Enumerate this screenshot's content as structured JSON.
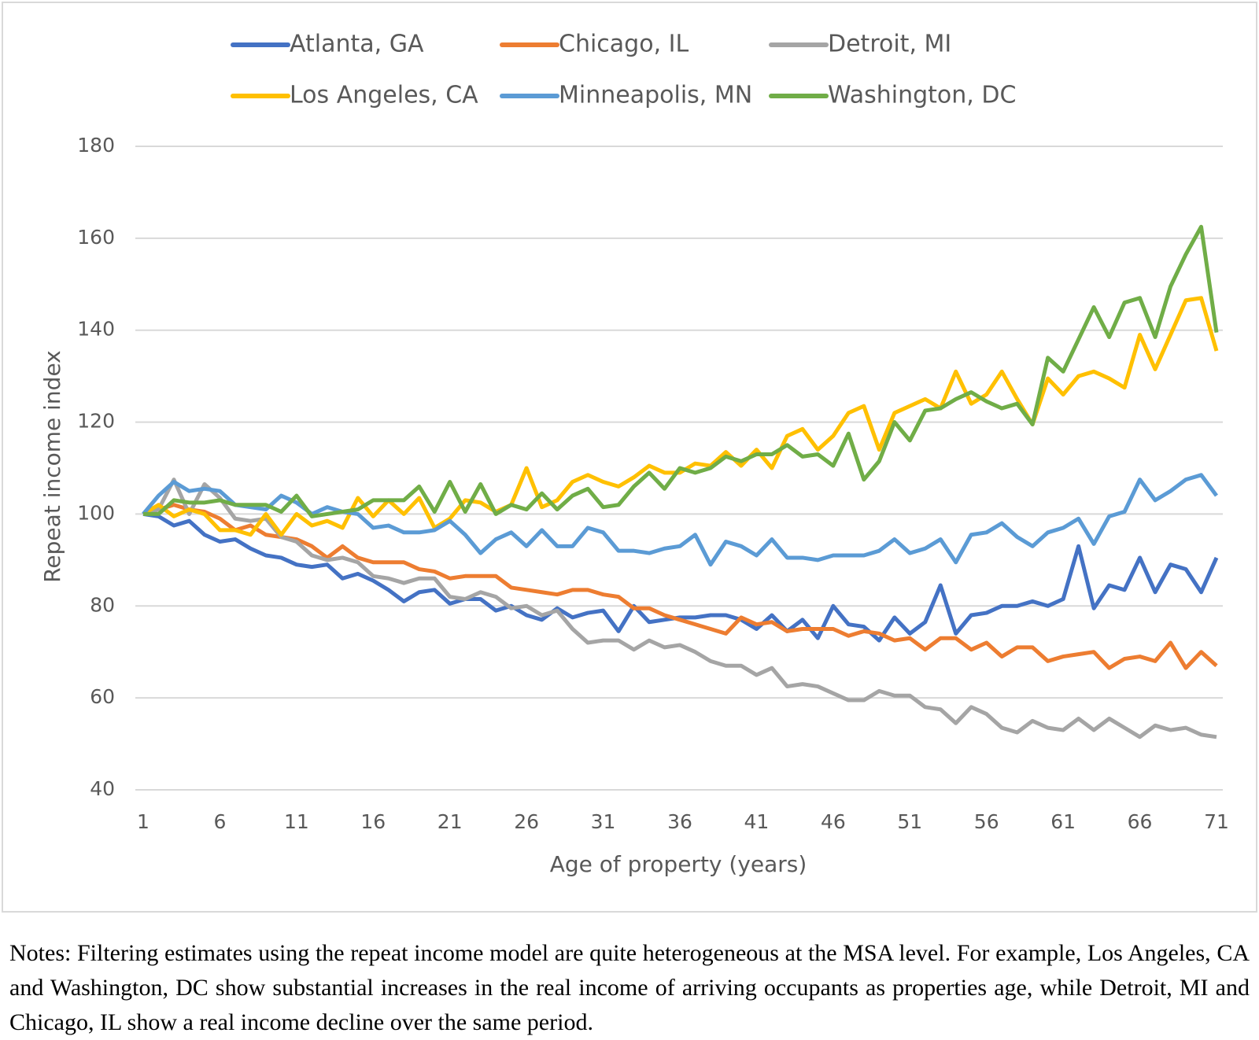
{
  "chart_data": {
    "type": "line",
    "x_label": "Age of property (years)",
    "y_label": "Repeat income index",
    "x": [
      1,
      2,
      3,
      4,
      5,
      6,
      7,
      8,
      9,
      10,
      11,
      12,
      13,
      14,
      15,
      16,
      17,
      18,
      19,
      20,
      21,
      22,
      23,
      24,
      25,
      26,
      27,
      28,
      29,
      30,
      31,
      32,
      33,
      34,
      35,
      36,
      37,
      38,
      39,
      40,
      41,
      42,
      43,
      44,
      45,
      46,
      47,
      48,
      49,
      50,
      51,
      52,
      53,
      54,
      55,
      56,
      57,
      58,
      59,
      60,
      61,
      62,
      63,
      64,
      65,
      66,
      67,
      68,
      69,
      70,
      71
    ],
    "xlim": [
      1,
      71
    ],
    "xticks": [
      1,
      6,
      11,
      16,
      21,
      26,
      31,
      36,
      41,
      46,
      51,
      56,
      61,
      66,
      71
    ],
    "ylim": [
      40,
      180
    ],
    "yticks": [
      40,
      60,
      80,
      100,
      120,
      140,
      160,
      180
    ],
    "grid": true,
    "legend": "top",
    "series": [
      {
        "name": "Atlanta, GA",
        "color": "#4472c4",
        "values": [
          100,
          99.5,
          97.5,
          98.5,
          95.5,
          94,
          94.5,
          92.5,
          91,
          90.5,
          89,
          88.5,
          89,
          86,
          87,
          85.5,
          83.5,
          81,
          83,
          83.5,
          80.5,
          81.5,
          81.5,
          79,
          80,
          78,
          77,
          79.5,
          77.5,
          78.5,
          79,
          74.5,
          80,
          76.5,
          77,
          77.5,
          77.5,
          78,
          78,
          77,
          75,
          78,
          74.5,
          77,
          73,
          80,
          76,
          75.5,
          72.5,
          77.5,
          74,
          76.5,
          84.5,
          74,
          78,
          78.5,
          80,
          80,
          81,
          80,
          81.5,
          93,
          79.5,
          84.5,
          83.5,
          90.5,
          83,
          89,
          88,
          83,
          90.5
        ]
      },
      {
        "name": "Chicago, IL",
        "color": "#ed7d31",
        "values": [
          100,
          101,
          102,
          101,
          100.5,
          99,
          96.5,
          97.5,
          95.5,
          95,
          94.5,
          93,
          90.5,
          93,
          90.5,
          89.5,
          89.5,
          89.5,
          88,
          87.5,
          86,
          86.5,
          86.5,
          86.5,
          84,
          83.5,
          83,
          82.5,
          83.5,
          83.5,
          82.5,
          82,
          79.5,
          79.5,
          78,
          77,
          76,
          75,
          74,
          77.5,
          76,
          76.5,
          74.5,
          75,
          75,
          75,
          73.5,
          74.5,
          74,
          72.5,
          73,
          70.5,
          73,
          73,
          70.5,
          72,
          69,
          71,
          71,
          68,
          69,
          69.5,
          70,
          66.5,
          68.5,
          69,
          68,
          72,
          66.5,
          70,
          67
        ]
      },
      {
        "name": "Detroit, MI",
        "color": "#a5a5a5",
        "values": [
          100,
          101,
          107.5,
          100,
          106.5,
          103.5,
          99,
          98.5,
          99,
          95,
          94,
          91,
          90,
          90.5,
          89.5,
          86.5,
          86,
          85,
          86,
          86,
          82,
          81.5,
          83,
          82,
          79.5,
          80,
          78,
          79,
          75,
          72,
          72.5,
          72.5,
          70.5,
          72.5,
          71,
          71.5,
          70,
          68,
          67,
          67,
          65,
          66.5,
          62.5,
          63,
          62.5,
          61,
          59.5,
          59.5,
          61.5,
          60.5,
          60.5,
          58,
          57.5,
          54.5,
          58,
          56.5,
          53.5,
          52.5,
          55,
          53.5,
          53,
          55.5,
          53,
          55.5,
          53.5,
          51.5,
          54,
          53,
          53.5,
          52,
          51.5
        ]
      },
      {
        "name": "Los Angeles, CA",
        "color": "#ffc000",
        "values": [
          100,
          102,
          99.5,
          101,
          100,
          96.5,
          96.5,
          95.5,
          100,
          95.5,
          100,
          97.5,
          98.5,
          97,
          103.5,
          99.5,
          103,
          100,
          103.5,
          97,
          99,
          103,
          102.5,
          100.5,
          102,
          110,
          101.5,
          103,
          107,
          108.5,
          107,
          106,
          108,
          110.5,
          109,
          109,
          111,
          110.5,
          113.5,
          110.5,
          114,
          110,
          117,
          118.5,
          114,
          117,
          122,
          123.5,
          114,
          122,
          123.5,
          125,
          123,
          131,
          124,
          126,
          131,
          125,
          119.5,
          129.5,
          126,
          130,
          131,
          129.5,
          127.5,
          139,
          131.5,
          139,
          146.5,
          147,
          135.5
        ]
      },
      {
        "name": "Minneapolis, MN",
        "color": "#5b9bd5",
        "values": [
          100,
          104,
          107,
          105,
          105.5,
          105,
          102,
          101.5,
          101,
          104,
          102.5,
          100,
          101.5,
          100.5,
          100,
          97,
          97.5,
          96,
          96,
          96.5,
          98.5,
          95.5,
          91.5,
          94.5,
          96,
          93,
          96.5,
          93,
          93,
          97,
          96,
          92,
          92,
          91.5,
          92.5,
          93,
          95.5,
          89,
          94,
          93,
          91,
          94.5,
          90.5,
          90.5,
          90,
          91,
          91,
          91,
          92,
          94.5,
          91.5,
          92.5,
          94.5,
          89.5,
          95.5,
          96,
          98,
          95,
          93,
          96,
          97,
          99,
          93.5,
          99.5,
          100.5,
          107.5,
          103,
          105,
          107.5,
          108.5,
          104
        ]
      },
      {
        "name": "Washington, DC",
        "color": "#70ad47",
        "values": [
          100,
          100,
          103,
          102.5,
          102.5,
          103,
          102,
          102,
          102,
          100.5,
          104,
          99.5,
          100,
          100.5,
          101,
          103,
          103,
          103,
          106,
          100.5,
          107,
          100.5,
          106.5,
          100,
          102,
          101,
          104.5,
          101,
          104,
          105.5,
          101.5,
          102,
          106,
          109,
          105.5,
          110,
          109,
          110,
          112.5,
          111.5,
          113,
          113,
          115,
          112.5,
          113,
          110.5,
          117.5,
          107.5,
          111.5,
          120,
          116,
          122.5,
          123,
          125,
          126.5,
          124.5,
          123,
          124,
          119.5,
          134,
          131,
          138,
          145,
          138.5,
          146,
          147,
          138.5,
          149.5,
          156.5,
          162.5,
          139.5
        ]
      }
    ]
  },
  "notes": "Notes: Filtering estimates using the repeat income model are quite heterogeneous at the MSA level. For example, Los Angeles, CA and Washington, DC show substantial increases in the real income of arriving occupants as properties age, while Detroit, MI and Chicago, IL show a real income decline over the same period."
}
